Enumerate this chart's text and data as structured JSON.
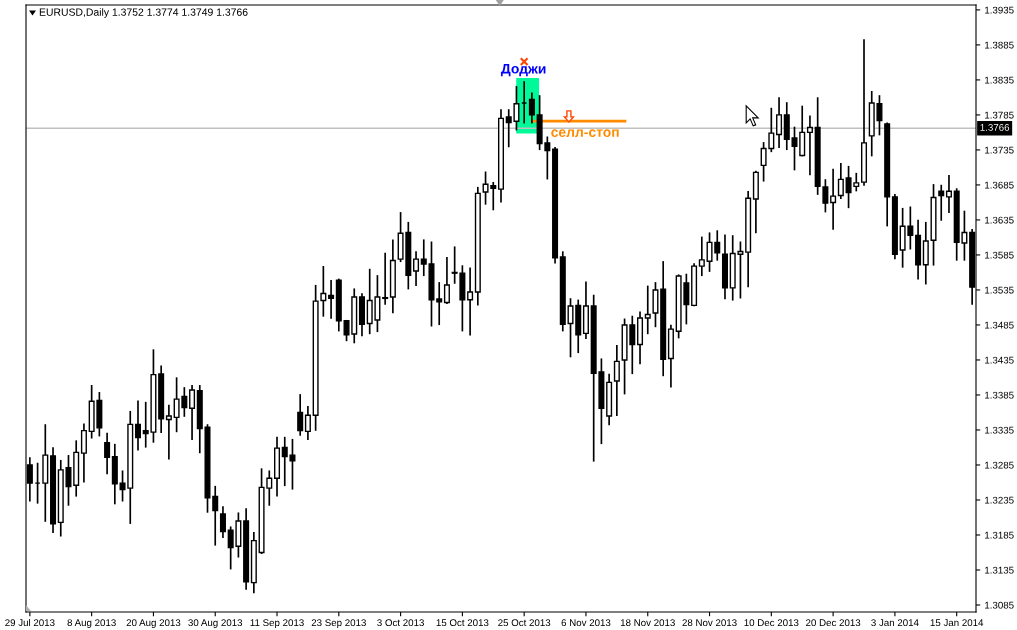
{
  "chart_data": {
    "type": "candlestick",
    "title": "EURUSD,Daily 1.3752 1.3774 1.3749 1.3766",
    "categories": [
      "29 Jul 2013",
      null,
      null,
      null,
      null,
      null,
      null,
      null,
      "8 Aug 2013",
      null,
      null,
      null,
      null,
      null,
      null,
      null,
      "20 Aug 2013",
      null,
      null,
      null,
      null,
      null,
      null,
      null,
      "30 Aug 2013",
      null,
      null,
      null,
      null,
      null,
      null,
      null,
      "11 Sep 2013",
      null,
      null,
      null,
      null,
      null,
      null,
      null,
      "23 Sep 2013",
      null,
      null,
      null,
      null,
      null,
      null,
      null,
      "3 Oct 2013",
      null,
      null,
      null,
      null,
      null,
      null,
      null,
      "15 Oct 2013",
      null,
      null,
      null,
      null,
      null,
      null,
      null,
      "25 Oct 2013",
      null,
      null,
      null,
      null,
      null,
      null,
      null,
      "6 Nov 2013",
      null,
      null,
      null,
      null,
      null,
      null,
      null,
      "18 Nov 2013",
      null,
      null,
      null,
      null,
      null,
      null,
      null,
      "28 Nov 2013",
      null,
      null,
      null,
      null,
      null,
      null,
      null,
      "10 Dec 2013",
      null,
      null,
      null,
      null,
      null,
      null,
      null,
      "20 Dec 2013",
      null,
      null,
      null,
      null,
      null,
      null,
      null,
      "3 Jan 2014",
      null,
      null,
      null,
      null,
      null,
      null,
      null,
      "15 Jan 2014",
      null,
      null
    ],
    "ohlc": [
      [
        1.3285,
        1.3295,
        1.3234,
        1.3259
      ],
      [
        1.3259,
        1.3287,
        1.3231,
        1.3259
      ],
      [
        1.3259,
        1.3342,
        1.3205,
        1.3299
      ],
      [
        1.3298,
        1.3309,
        1.3189,
        1.3201
      ],
      [
        1.3203,
        1.3291,
        1.3184,
        1.3278
      ],
      [
        1.3281,
        1.3298,
        1.3228,
        1.3254
      ],
      [
        1.3256,
        1.3319,
        1.3241,
        1.3303
      ],
      [
        1.3302,
        1.3343,
        1.3261,
        1.3334
      ],
      [
        1.3333,
        1.3398,
        1.3324,
        1.3376
      ],
      [
        1.3377,
        1.3388,
        1.3327,
        1.3338
      ],
      [
        1.3317,
        1.333,
        1.3273,
        1.3296
      ],
      [
        1.3297,
        1.3314,
        1.323,
        1.3258
      ],
      [
        1.3259,
        1.3276,
        1.3234,
        1.325
      ],
      [
        1.3252,
        1.3361,
        1.3202,
        1.3343
      ],
      [
        1.3343,
        1.3376,
        1.3307,
        1.3324
      ],
      [
        1.3334,
        1.3374,
        1.3311,
        1.333
      ],
      [
        1.3332,
        1.3449,
        1.3318,
        1.3414
      ],
      [
        1.3415,
        1.3426,
        1.3332,
        1.3351
      ],
      [
        1.335,
        1.337,
        1.3294,
        1.3355
      ],
      [
        1.3353,
        1.3409,
        1.3333,
        1.3379
      ],
      [
        1.3383,
        1.3395,
        1.3355,
        1.3367
      ],
      [
        1.3366,
        1.3398,
        1.3322,
        1.3392
      ],
      [
        1.3391,
        1.3398,
        1.3303,
        1.3337
      ],
      [
        1.3339,
        1.3342,
        1.3218,
        1.3238
      ],
      [
        1.324,
        1.3254,
        1.3171,
        1.322
      ],
      [
        1.3215,
        1.3225,
        1.3182,
        1.319
      ],
      [
        1.3192,
        1.3196,
        1.3137,
        1.3167
      ],
      [
        1.3169,
        1.3216,
        1.3154,
        1.3205
      ],
      [
        1.3205,
        1.3222,
        1.3108,
        1.3118
      ],
      [
        1.3117,
        1.3188,
        1.3103,
        1.3177
      ],
      [
        1.316,
        1.3279,
        1.3159,
        1.3253
      ],
      [
        1.3252,
        1.3276,
        1.3228,
        1.3266
      ],
      [
        1.3266,
        1.3324,
        1.3241,
        1.3309
      ],
      [
        1.331,
        1.3324,
        1.3256,
        1.3297
      ],
      [
        1.3299,
        1.3321,
        1.3251,
        1.3291
      ],
      [
        1.336,
        1.3385,
        1.3328,
        1.3334
      ],
      [
        1.3333,
        1.3368,
        1.3322,
        1.3356
      ],
      [
        1.3356,
        1.3541,
        1.3335,
        1.3519
      ],
      [
        1.352,
        1.3568,
        1.3498,
        1.353
      ],
      [
        1.3527,
        1.3548,
        1.3495,
        1.3523
      ],
      [
        1.3549,
        1.355,
        1.3477,
        1.3491
      ],
      [
        1.3491,
        1.3491,
        1.3463,
        1.3471
      ],
      [
        1.3472,
        1.3536,
        1.346,
        1.3525
      ],
      [
        1.3525,
        1.3529,
        1.347,
        1.3486
      ],
      [
        1.3487,
        1.3564,
        1.3473,
        1.352
      ],
      [
        1.3492,
        1.3555,
        1.3476,
        1.3525
      ],
      [
        1.3524,
        1.3587,
        1.3515,
        1.3523
      ],
      [
        1.3525,
        1.3606,
        1.3503,
        1.3577
      ],
      [
        1.3579,
        1.3645,
        1.3576,
        1.3616
      ],
      [
        1.3617,
        1.3631,
        1.3537,
        1.3556
      ],
      [
        1.3562,
        1.3589,
        1.3542,
        1.3579
      ],
      [
        1.3579,
        1.3606,
        1.3556,
        1.3572
      ],
      [
        1.3572,
        1.3603,
        1.3484,
        1.3521
      ],
      [
        1.3522,
        1.3545,
        1.3486,
        1.3518
      ],
      [
        1.3517,
        1.3581,
        1.3516,
        1.3542
      ],
      [
        1.356,
        1.3596,
        1.3545,
        1.3559
      ],
      [
        1.3559,
        1.3569,
        1.3477,
        1.3521
      ],
      [
        1.3521,
        1.3566,
        1.3471,
        1.3532
      ],
      [
        1.3532,
        1.3681,
        1.3514,
        1.3673
      ],
      [
        1.3675,
        1.3703,
        1.3658,
        1.3686
      ],
      [
        1.3684,
        1.3688,
        1.365,
        1.368
      ],
      [
        1.3679,
        1.3792,
        1.3661,
        1.378
      ],
      [
        1.3782,
        1.3792,
        1.374,
        1.3774
      ],
      [
        1.3776,
        1.3825,
        1.3764,
        1.3801
      ],
      [
        1.3802,
        1.3832,
        1.3774,
        1.3802
      ],
      [
        1.3807,
        1.3816,
        1.3774,
        1.3785
      ],
      [
        1.3785,
        1.3812,
        1.3736,
        1.3744
      ],
      [
        1.3745,
        1.3753,
        1.3694,
        1.3734
      ],
      [
        1.3736,
        1.3738,
        1.3574,
        1.3581
      ],
      [
        1.3582,
        1.3589,
        1.3477,
        1.3486
      ],
      [
        1.3487,
        1.3522,
        1.344,
        1.3512
      ],
      [
        1.3513,
        1.352,
        1.3446,
        1.3471
      ],
      [
        1.3473,
        1.3546,
        1.3466,
        1.3512
      ],
      [
        1.3512,
        1.3527,
        1.3291,
        1.3416
      ],
      [
        1.3418,
        1.3436,
        1.3316,
        1.3366
      ],
      [
        1.3355,
        1.3414,
        1.3343,
        1.3403
      ],
      [
        1.3405,
        1.3455,
        1.3356,
        1.3433
      ],
      [
        1.3435,
        1.3493,
        1.3387,
        1.3485
      ],
      [
        1.3485,
        1.3497,
        1.3416,
        1.3457
      ],
      [
        1.3457,
        1.3503,
        1.343,
        1.3495
      ],
      [
        1.3495,
        1.354,
        1.3473,
        1.35
      ],
      [
        1.3502,
        1.3545,
        1.3483,
        1.3535
      ],
      [
        1.3536,
        1.3575,
        1.3413,
        1.3436
      ],
      [
        1.3437,
        1.3484,
        1.3397,
        1.3479
      ],
      [
        1.3476,
        1.3556,
        1.3467,
        1.3555
      ],
      [
        1.3545,
        1.3557,
        1.3487,
        1.3514
      ],
      [
        1.3513,
        1.3572,
        1.3513,
        1.3569
      ],
      [
        1.3569,
        1.361,
        1.3556,
        1.3578
      ],
      [
        1.3576,
        1.3616,
        1.3562,
        1.3603
      ],
      [
        1.3603,
        1.3619,
        1.3578,
        1.3588
      ],
      [
        1.3586,
        1.3613,
        1.3523,
        1.3538
      ],
      [
        1.3538,
        1.3612,
        1.3521,
        1.3587
      ],
      [
        1.3586,
        1.3603,
        1.3524,
        1.359
      ],
      [
        1.3589,
        1.3675,
        1.354,
        1.3666
      ],
      [
        1.3665,
        1.3704,
        1.3617,
        1.3703
      ],
      [
        1.3713,
        1.3745,
        1.3691,
        1.3737
      ],
      [
        1.3737,
        1.3794,
        1.3733,
        1.3759
      ],
      [
        1.3757,
        1.3809,
        1.3739,
        1.3785
      ],
      [
        1.3785,
        1.3802,
        1.3736,
        1.375
      ],
      [
        1.3752,
        1.3767,
        1.3707,
        1.374
      ],
      [
        1.3727,
        1.3797,
        1.3727,
        1.376
      ],
      [
        1.376,
        1.3783,
        1.37,
        1.3767
      ],
      [
        1.3767,
        1.3809,
        1.3672,
        1.3683
      ],
      [
        1.3682,
        1.3692,
        1.3647,
        1.3659
      ],
      [
        1.366,
        1.3707,
        1.3622,
        1.3669
      ],
      [
        1.367,
        1.3715,
        1.3666,
        1.3693
      ],
      [
        1.3695,
        1.3711,
        1.3653,
        1.3674
      ],
      [
        1.3683,
        1.3701,
        1.3677,
        1.3688
      ],
      [
        1.3689,
        1.3892,
        1.3685,
        1.3745
      ],
      [
        1.3755,
        1.3818,
        1.3727,
        1.3802
      ],
      [
        1.3801,
        1.3812,
        1.3757,
        1.3777
      ],
      [
        1.3772,
        1.3773,
        1.3627,
        1.3668
      ],
      [
        1.3668,
        1.3671,
        1.358,
        1.3586
      ],
      [
        1.3592,
        1.3651,
        1.3568,
        1.3626
      ],
      [
        1.3626,
        1.3653,
        1.3594,
        1.3613
      ],
      [
        1.3613,
        1.3634,
        1.3551,
        1.3571
      ],
      [
        1.3571,
        1.3631,
        1.3544,
        1.3605
      ],
      [
        1.3606,
        1.3685,
        1.3571,
        1.3667
      ],
      [
        1.3676,
        1.3684,
        1.3635,
        1.367
      ],
      [
        1.3668,
        1.3698,
        1.3646,
        1.3676
      ],
      [
        1.3676,
        1.3679,
        1.3578,
        1.3603
      ],
      [
        1.3602,
        1.3647,
        1.3578,
        1.3617
      ],
      [
        1.3617,
        1.3621,
        1.3515,
        1.3539
      ]
    ],
    "series": [
      {
        "type": "scatter",
        "x": [
          "25 Oct 2013"
        ],
        "values": [
          1.3861
        ],
        "color": "#ff4500"
      }
    ],
    "marker": "cross",
    "ylim": [
      1.3075,
      1.3942
    ],
    "yticks": [
      1.3085,
      1.3135,
      1.3185,
      1.3235,
      1.3285,
      1.3335,
      1.3385,
      1.3435,
      1.3485,
      1.3535,
      1.3585,
      1.3635,
      1.3685,
      1.3735,
      1.3785,
      1.3835,
      1.3885,
      1.3935
    ],
    "ref_lines": [
      {
        "axis": "y",
        "value": 1.3766,
        "label": "1.3766",
        "color": "#c0c0c0"
      },
      {
        "axis": "y",
        "value": 1.3776,
        "label": "селл-стоп",
        "color": "#ff8c00"
      }
    ],
    "annotations": [
      "Доджи"
    ]
  }
}
